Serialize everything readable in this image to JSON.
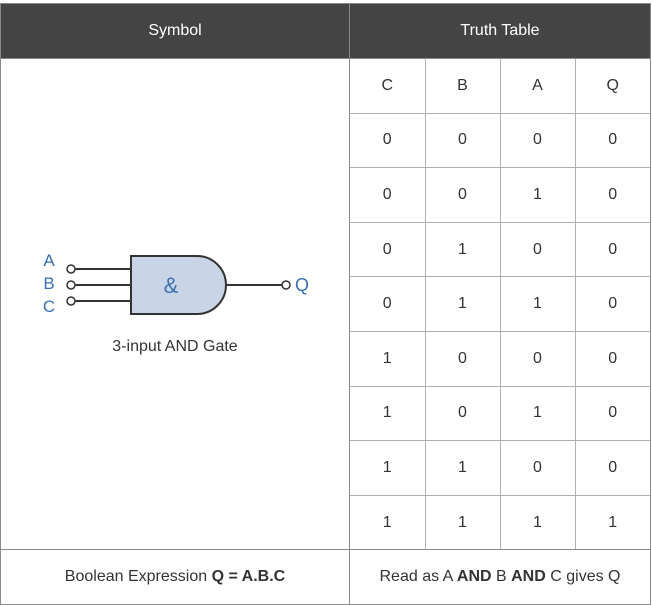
{
  "headers": {
    "symbol": "Symbol",
    "truth_table": "Truth Table"
  },
  "symbol": {
    "inputs": [
      "A",
      "B",
      "C"
    ],
    "output": "Q",
    "gate_glyph": "&",
    "caption": "3-input AND Gate",
    "colors": {
      "gate_fill": "#c9d4e6",
      "gate_stroke": "#333333",
      "label": "#3a6fb0"
    }
  },
  "truth_table": {
    "columns": [
      "C",
      "B",
      "A",
      "Q"
    ],
    "rows": [
      [
        "0",
        "0",
        "0",
        "0"
      ],
      [
        "0",
        "0",
        "1",
        "0"
      ],
      [
        "0",
        "1",
        "0",
        "0"
      ],
      [
        "0",
        "1",
        "1",
        "0"
      ],
      [
        "1",
        "0",
        "0",
        "0"
      ],
      [
        "1",
        "0",
        "1",
        "0"
      ],
      [
        "1",
        "1",
        "0",
        "0"
      ],
      [
        "1",
        "1",
        "1",
        "1"
      ]
    ]
  },
  "footer": {
    "boolean_prefix": "Boolean Expression ",
    "boolean_expr": "Q = A.B.C",
    "read_parts": [
      "Read as A ",
      "AND",
      " B ",
      "AND",
      " C gives Q"
    ]
  }
}
